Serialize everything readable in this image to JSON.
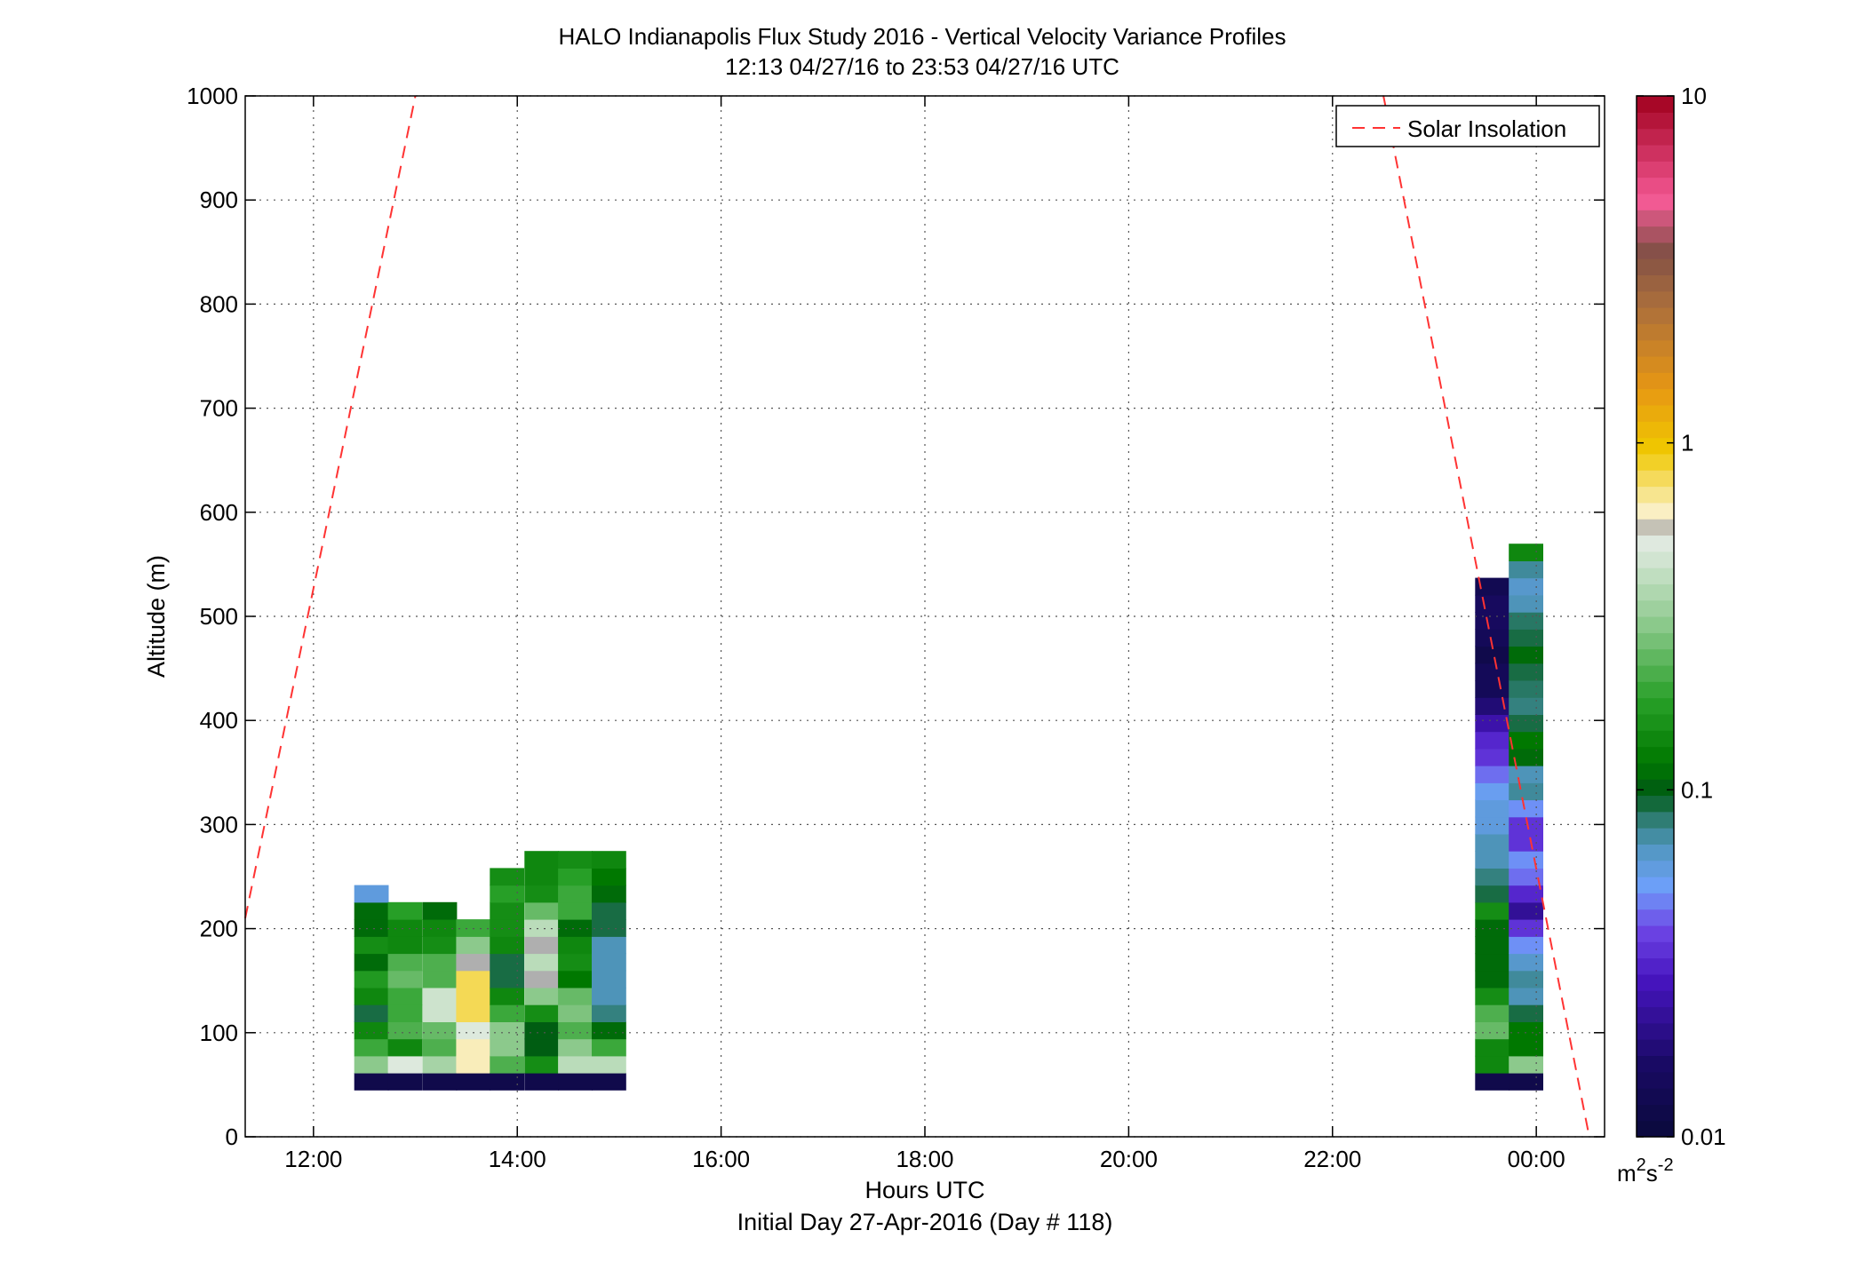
{
  "chart_data": {
    "type": "heatmap",
    "title": "HALO Indianapolis Flux Study 2016 - Vertical Velocity Variance Profiles",
    "subtitle": "12:13 04/27/16 to 23:53 04/27/16  UTC",
    "xlabel": "Hours UTC",
    "xlabel2": "Initial Day 27-Apr-2016 (Day # 118)",
    "ylabel": "Altitude (m)",
    "xlim": [
      11.33,
      24.67
    ],
    "ylim": [
      0,
      1000
    ],
    "x_ticks": [
      12,
      14,
      16,
      18,
      20,
      22,
      24
    ],
    "x_tick_labels": [
      "12:00",
      "14:00",
      "16:00",
      "18:00",
      "20:00",
      "22:00",
      "00:00"
    ],
    "y_ticks": [
      0,
      100,
      200,
      300,
      400,
      500,
      600,
      700,
      800,
      900,
      1000
    ],
    "y_tick_labels": [
      "0",
      "100",
      "200",
      "300",
      "400",
      "500",
      "600",
      "700",
      "800",
      "900",
      "1000"
    ],
    "grid": true,
    "legend": {
      "position": "top-right",
      "entries": [
        {
          "label": "Solar Insolation",
          "style": "red dashed"
        }
      ]
    },
    "colorbar": {
      "scale": "log",
      "range": [
        0.01,
        10
      ],
      "tick_values": [
        0.01,
        0.1,
        1,
        10
      ],
      "tick_labels": [
        "0.01",
        "0.1",
        "1",
        "10"
      ],
      "unit_base": "m",
      "unit_exp1": "2",
      "unit_mid": "s",
      "unit_exp2": "-2"
    },
    "cell_height_m": 16.4,
    "cell_width_h": 0.333,
    "series": [
      {
        "x": 12.4,
        "values": [
          0.012,
          0.3,
          0.2,
          0.14,
          0.09,
          0.14,
          0.17,
          0.11,
          0.15,
          0.11,
          0.11,
          0.06
        ]
      },
      {
        "x": 12.73,
        "values": [
          0.012,
          0.5,
          0.14,
          0.22,
          0.2,
          0.2,
          0.25,
          0.22,
          0.14,
          0.14,
          0.18
        ]
      },
      {
        "x": 13.07,
        "values": [
          0.012,
          0.35,
          0.22,
          0.25,
          0.45,
          0.45,
          0.22,
          0.22,
          0.15,
          0.14,
          0.11
        ]
      },
      {
        "x": 13.4,
        "values": [
          0.012,
          0.65,
          0.65,
          0.5,
          0.8,
          0.8,
          0.8,
          0.55,
          0.3,
          0.2
        ]
      },
      {
        "x": 13.73,
        "values": [
          0.012,
          0.22,
          0.3,
          0.3,
          0.2,
          0.14,
          0.09,
          0.09,
          0.14,
          0.15,
          0.15,
          0.18,
          0.15
        ]
      },
      {
        "x": 14.07,
        "values": [
          0.012,
          0.15,
          0.1,
          0.1,
          0.15,
          0.3,
          0.55,
          0.4,
          0.55,
          0.4,
          0.25,
          0.15,
          0.14,
          0.14
        ]
      },
      {
        "x": 14.4,
        "values": [
          0.012,
          0.4,
          0.3,
          0.22,
          0.28,
          0.25,
          0.12,
          0.15,
          0.14,
          0.11,
          0.2,
          0.2,
          0.18,
          0.15
        ]
      },
      {
        "x": 14.73,
        "values": [
          0.012,
          0.4,
          0.2,
          0.11,
          0.08,
          0.07,
          0.07,
          0.07,
          0.07,
          0.09,
          0.09,
          0.11,
          0.12,
          0.14
        ]
      },
      {
        "x": 23.4,
        "values": [
          0.012,
          0.14,
          0.14,
          0.25,
          0.22,
          0.15,
          0.11,
          0.11,
          0.11,
          0.11,
          0.15,
          0.09,
          0.08,
          0.07,
          0.07,
          0.06,
          0.06,
          0.055,
          0.045,
          0.035,
          0.032,
          0.025,
          0.018,
          0.014,
          0.014,
          0.012,
          0.014,
          0.015,
          0.015,
          0.013
        ]
      },
      {
        "x": 23.73,
        "values": [
          0.012,
          0.3,
          0.12,
          0.12,
          0.09,
          0.07,
          0.075,
          0.065,
          0.05,
          0.035,
          0.022,
          0.032,
          0.045,
          0.05,
          0.035,
          0.035,
          0.05,
          0.075,
          0.07,
          0.11,
          0.12,
          0.09,
          0.08,
          0.085,
          0.09,
          0.11,
          0.09,
          0.085,
          0.07,
          0.065,
          0.075,
          0.14
        ]
      }
    ],
    "solar_insolation": {
      "name": "Solar Insolation",
      "color": "#ff3333",
      "style": "dashed",
      "segments": [
        [
          [
            11.33,
            210
          ],
          [
            13.0,
            1000
          ]
        ],
        [
          [
            22.5,
            1000
          ],
          [
            24.52,
            0
          ]
        ]
      ]
    }
  }
}
